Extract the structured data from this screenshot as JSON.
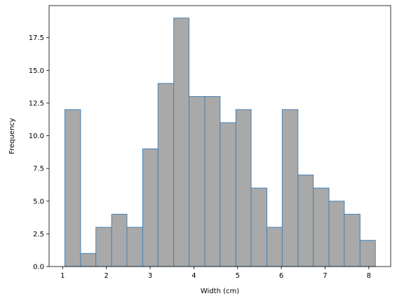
{
  "chart_data": {
    "type": "bar",
    "title": "",
    "xlabel": "Width (cm)",
    "ylabel": "Frequency",
    "xlim": [
      0.69,
      8.5
    ],
    "ylim": [
      0,
      19.95
    ],
    "bins": [
      {
        "x0": 1.05,
        "x1": 1.41,
        "count": 12
      },
      {
        "x0": 1.41,
        "x1": 1.76,
        "count": 1
      },
      {
        "x0": 1.76,
        "x1": 2.12,
        "count": 3
      },
      {
        "x0": 2.12,
        "x1": 2.47,
        "count": 4
      },
      {
        "x0": 2.47,
        "x1": 2.83,
        "count": 3
      },
      {
        "x0": 2.83,
        "x1": 3.18,
        "count": 9
      },
      {
        "x0": 3.18,
        "x1": 3.54,
        "count": 14
      },
      {
        "x0": 3.54,
        "x1": 3.89,
        "count": 19
      },
      {
        "x0": 3.89,
        "x1": 4.25,
        "count": 13
      },
      {
        "x0": 4.25,
        "x1": 4.6,
        "count": 13
      },
      {
        "x0": 4.6,
        "x1": 4.96,
        "count": 11
      },
      {
        "x0": 4.96,
        "x1": 5.31,
        "count": 12
      },
      {
        "x0": 5.31,
        "x1": 5.67,
        "count": 6
      },
      {
        "x0": 5.67,
        "x1": 6.02,
        "count": 3
      },
      {
        "x0": 6.02,
        "x1": 6.38,
        "count": 12
      },
      {
        "x0": 6.38,
        "x1": 6.73,
        "count": 7
      },
      {
        "x0": 6.73,
        "x1": 7.09,
        "count": 6
      },
      {
        "x0": 7.09,
        "x1": 7.44,
        "count": 5
      },
      {
        "x0": 7.44,
        "x1": 7.8,
        "count": 4
      },
      {
        "x0": 7.8,
        "x1": 8.15,
        "count": 2
      }
    ],
    "x_ticks": [
      "1",
      "2",
      "3",
      "4",
      "5",
      "6",
      "7",
      "8"
    ],
    "y_ticks": [
      "0.0",
      "2.5",
      "5.0",
      "7.5",
      "10.0",
      "12.5",
      "15.0",
      "17.5"
    ],
    "bar_color": "#a9a9a9",
    "edge_color": "#4682b4",
    "grid": false
  }
}
